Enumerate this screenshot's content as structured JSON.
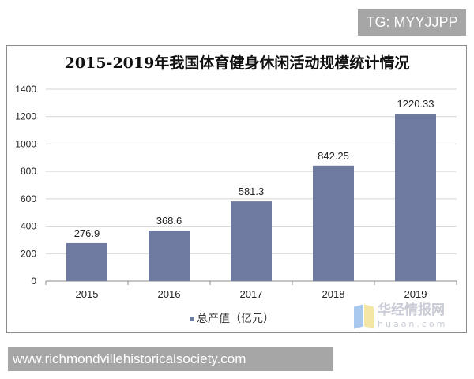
{
  "watermark_top": "TG: MYYJJPP",
  "watermark_bottom": "www.richmondvillehistoricalsociety.com",
  "logo": {
    "cn": "华经情报网",
    "en": "huaon.com"
  },
  "chart_data": {
    "type": "bar",
    "title": "2015-2019年我国体育健身休闲活动规模统计情况",
    "categories": [
      "2015",
      "2016",
      "2017",
      "2018",
      "2019"
    ],
    "series": [
      {
        "name": "总产值（亿元）",
        "values": [
          276.9,
          368.6,
          581.3,
          842.25,
          1220.33
        ],
        "color": "#6f7aa0"
      }
    ],
    "data_labels": [
      "276.9",
      "368.6",
      "581.3",
      "842.25",
      "1220.33"
    ],
    "yticks": [
      "0",
      "200",
      "400",
      "600",
      "800",
      "1000",
      "1200",
      "1400"
    ],
    "ylim": [
      0,
      1400
    ],
    "grid": true,
    "legend": "bottom"
  }
}
